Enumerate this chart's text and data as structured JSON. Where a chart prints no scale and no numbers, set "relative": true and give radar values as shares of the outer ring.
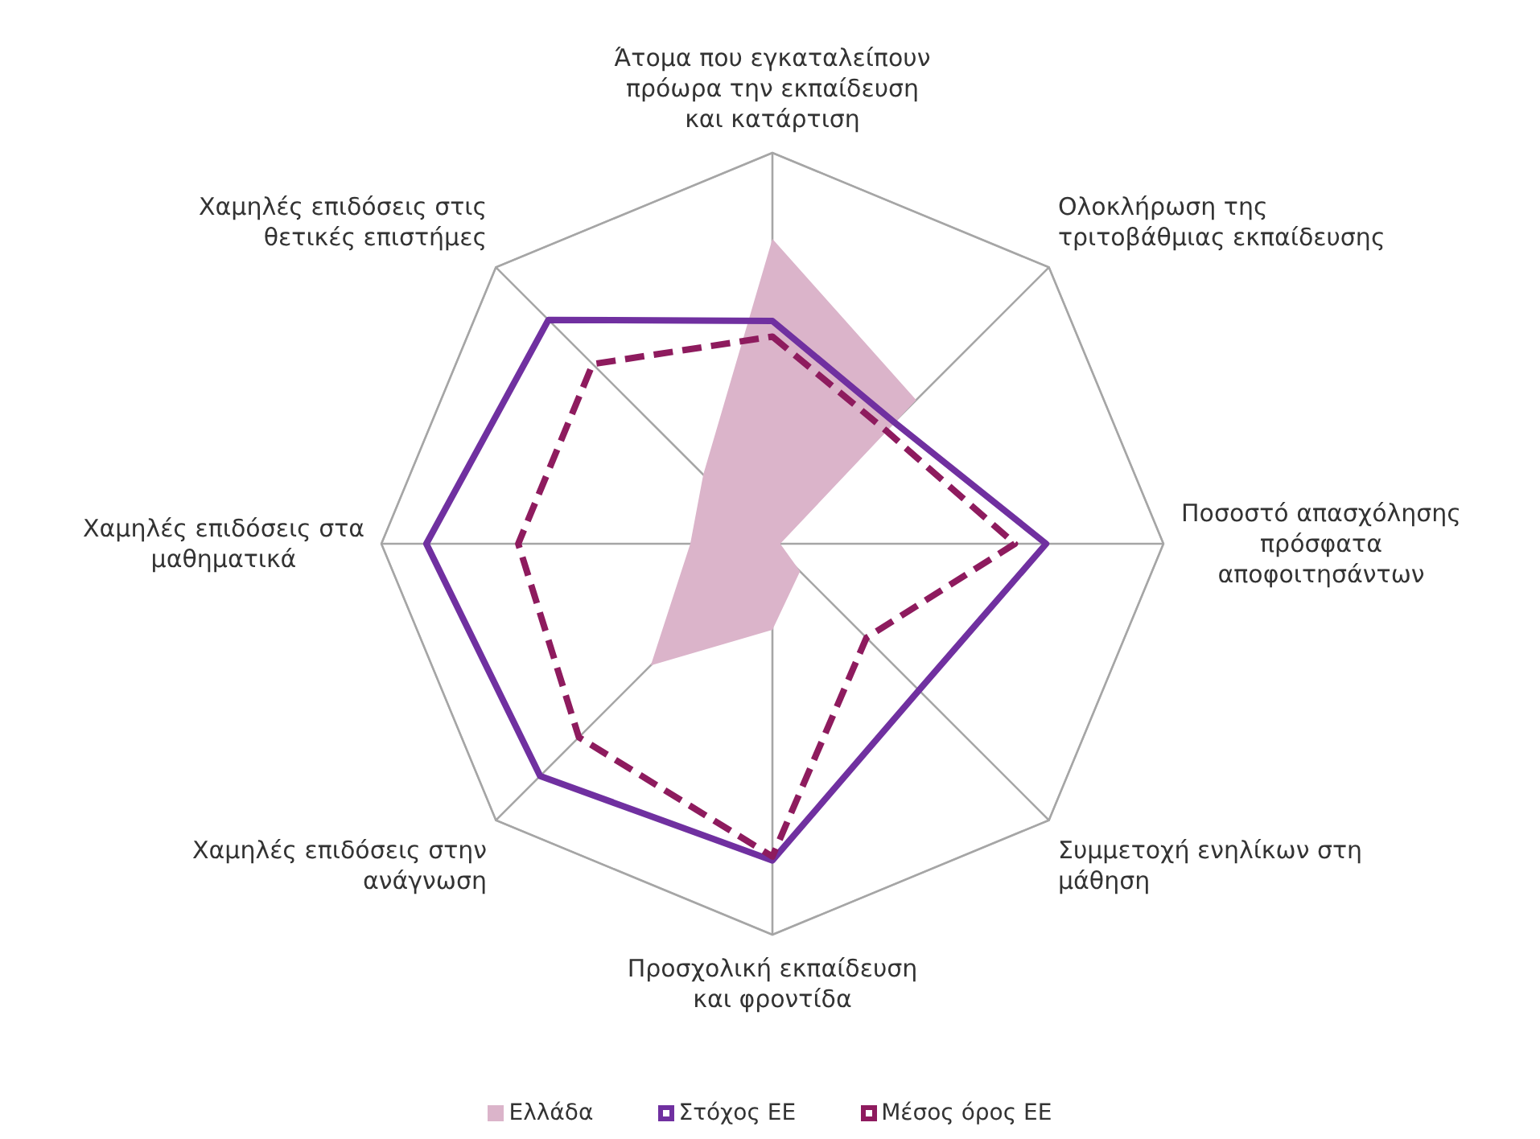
{
  "chart_data": {
    "type": "radar",
    "relative": true,
    "grid": true,
    "legend": "bottom",
    "categories": [
      "Άτομα που εγκαταλείπουν πρόωρα την εκπαίδευση και κατάρτιση",
      "Ολοκλήρωση της τριτοβάθμιας εκπαίδευσης",
      "Ποσοστό απασχόλησης πρόσφατα αποφοιτησάντων",
      "Συμμετοχή ενηλίκων στη μάθηση",
      "Προσχολική εκπαίδευση και φροντίδα",
      "Χαμηλές επιδόσεις στην ανάγνωση",
      "Χαμηλές επιδόσεις στα μαθηματικά",
      "Χαμηλές επιδόσεις στις θετικές επιστήμες"
    ],
    "series": [
      {
        "name": "Ελλάδα",
        "color": "#dbb4ca",
        "values": [
          0.78,
          0.52,
          0.02,
          0.1,
          0.22,
          0.44,
          0.21,
          0.25
        ]
      },
      {
        "name": "Στόχος ΕΕ",
        "line_style": "solid",
        "color": "#7030a0",
        "values": [
          0.57,
          0.44,
          0.7,
          0.53,
          0.81,
          0.84,
          0.885,
          0.81
        ]
      },
      {
        "name": "Μέσος όρος ΕΕ",
        "line_style": "dashed",
        "color": "#8e1b5e",
        "values": [
          0.53,
          0.41,
          0.62,
          0.34,
          0.8,
          0.7,
          0.65,
          0.65
        ]
      }
    ]
  }
}
